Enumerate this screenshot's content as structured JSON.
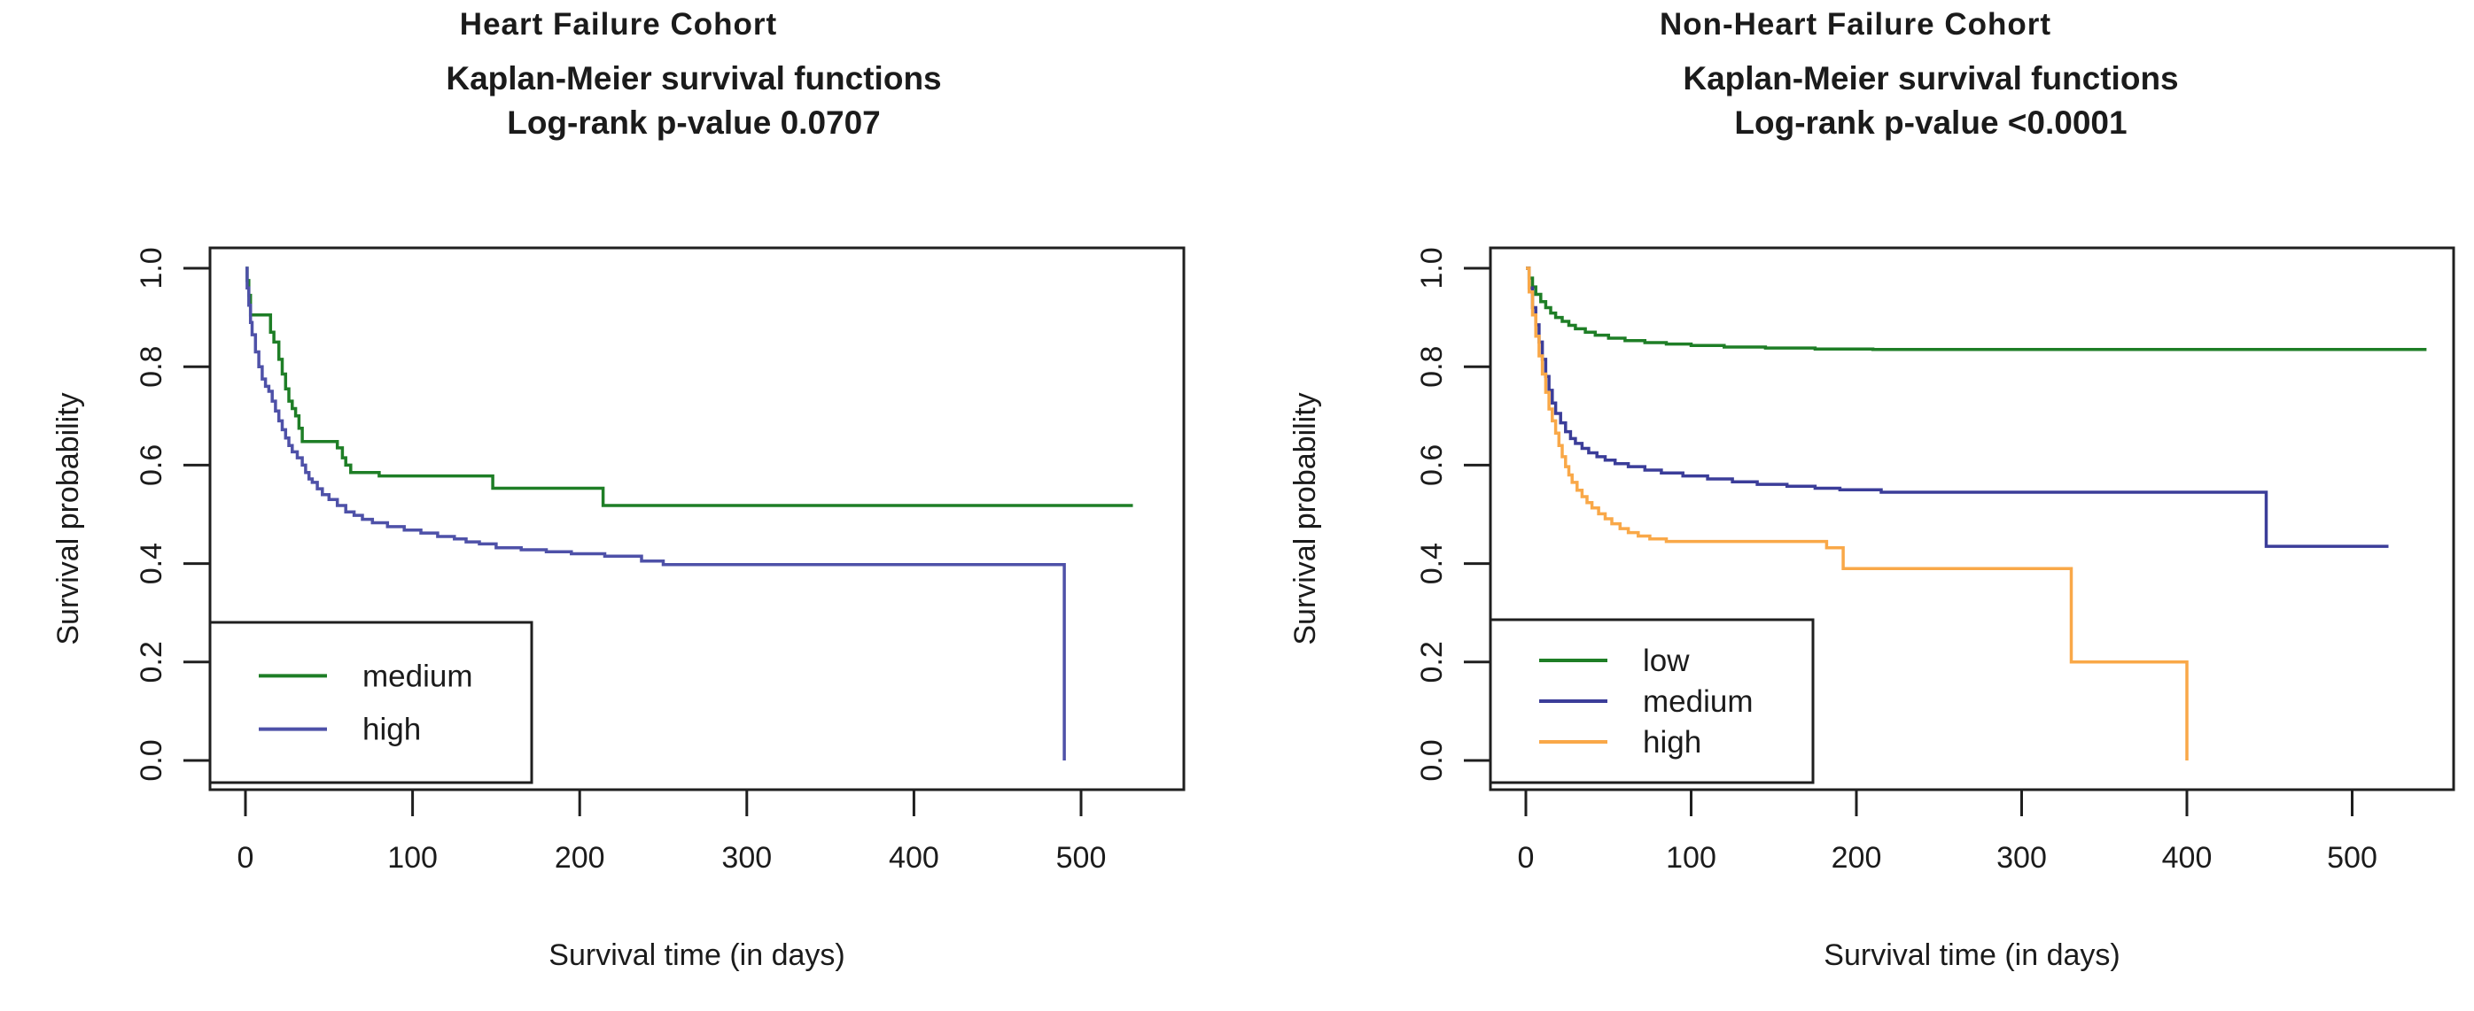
{
  "figure": {
    "background": "#ffffff",
    "axis_color": "#1f1f1f",
    "text_color": "#1b1b1b"
  },
  "chart_data": [
    {
      "type": "line",
      "subtype": "kaplan-meier-step",
      "title": "Heart Failure Cohort",
      "subtitle": "Kaplan-Meier survival functions",
      "pvalue_line": "Log-rank p-value 0.0707",
      "xlabel": "Survival time (in days)",
      "ylabel": "Survival probability",
      "xlim": [
        0,
        540
      ],
      "ylim": [
        0,
        1
      ],
      "xticks": [
        "0",
        "100",
        "200",
        "300",
        "400",
        "500"
      ],
      "xtick_values": [
        0,
        100,
        200,
        300,
        400,
        500
      ],
      "yticks": [
        "0.0",
        "0.2",
        "0.4",
        "0.6",
        "0.8",
        "1.0"
      ],
      "ytick_values": [
        0.0,
        0.2,
        0.4,
        0.6,
        0.8,
        1.0
      ],
      "grid": false,
      "legend_position": "bottom-left",
      "series": [
        {
          "name": "medium",
          "color": "#1E7E26",
          "points": [
            [
              0,
              1.0
            ],
            [
              1,
              0.975
            ],
            [
              2,
              0.945
            ],
            [
              3,
              0.905
            ],
            [
              15,
              0.87
            ],
            [
              17,
              0.85
            ],
            [
              20,
              0.815
            ],
            [
              22,
              0.785
            ],
            [
              24,
              0.755
            ],
            [
              26,
              0.73
            ],
            [
              28,
              0.715
            ],
            [
              30,
              0.7
            ],
            [
              32,
              0.675
            ],
            [
              34,
              0.648
            ],
            [
              55,
              0.635
            ],
            [
              58,
              0.615
            ],
            [
              60,
              0.6
            ],
            [
              63,
              0.585
            ],
            [
              80,
              0.578
            ],
            [
              148,
              0.553
            ],
            [
              214,
              0.518
            ],
            [
              531,
              0.518
            ]
          ]
        },
        {
          "name": "high",
          "color": "#4E51A8",
          "points": [
            [
              0,
              1.0
            ],
            [
              1,
              0.96
            ],
            [
              2,
              0.925
            ],
            [
              3,
              0.89
            ],
            [
              4,
              0.865
            ],
            [
              6,
              0.83
            ],
            [
              8,
              0.8
            ],
            [
              10,
              0.775
            ],
            [
              12,
              0.76
            ],
            [
              14,
              0.75
            ],
            [
              16,
              0.73
            ],
            [
              18,
              0.71
            ],
            [
              20,
              0.69
            ],
            [
              22,
              0.672
            ],
            [
              24,
              0.655
            ],
            [
              26,
              0.64
            ],
            [
              28,
              0.627
            ],
            [
              31,
              0.615
            ],
            [
              34,
              0.6
            ],
            [
              36,
              0.585
            ],
            [
              38,
              0.572
            ],
            [
              40,
              0.565
            ],
            [
              43,
              0.552
            ],
            [
              46,
              0.54
            ],
            [
              50,
              0.53
            ],
            [
              55,
              0.518
            ],
            [
              60,
              0.505
            ],
            [
              65,
              0.498
            ],
            [
              70,
              0.49
            ],
            [
              76,
              0.483
            ],
            [
              85,
              0.475
            ],
            [
              95,
              0.468
            ],
            [
              105,
              0.462
            ],
            [
              115,
              0.455
            ],
            [
              125,
              0.45
            ],
            [
              132,
              0.444
            ],
            [
              140,
              0.44
            ],
            [
              150,
              0.432
            ],
            [
              165,
              0.428
            ],
            [
              180,
              0.424
            ],
            [
              195,
              0.42
            ],
            [
              215,
              0.415
            ],
            [
              237,
              0.405
            ],
            [
              250,
              0.398
            ],
            [
              490,
              0.0
            ]
          ]
        }
      ]
    },
    {
      "type": "line",
      "subtype": "kaplan-meier-step",
      "title": "Non-Heart Failure Cohort",
      "subtitle": "Kaplan-Meier survival functions",
      "pvalue_line": "Log-rank p-value <0.0001",
      "xlabel": "Survival time (in days)",
      "ylabel": "Survival probability",
      "xlim": [
        0,
        540
      ],
      "ylim": [
        0,
        1
      ],
      "xticks": [
        "0",
        "100",
        "200",
        "300",
        "400",
        "500"
      ],
      "xtick_values": [
        0,
        100,
        200,
        300,
        400,
        500
      ],
      "yticks": [
        "0.0",
        "0.2",
        "0.4",
        "0.6",
        "0.8",
        "1.0"
      ],
      "ytick_values": [
        0.0,
        0.2,
        0.4,
        0.6,
        0.8,
        1.0
      ],
      "grid": false,
      "legend_position": "bottom-left",
      "series": [
        {
          "name": "low",
          "color": "#1E7E26",
          "points": [
            [
              0,
              1.0
            ],
            [
              2,
              0.98
            ],
            [
              4,
              0.962
            ],
            [
              6,
              0.947
            ],
            [
              9,
              0.932
            ],
            [
              12,
              0.92
            ],
            [
              15,
              0.909
            ],
            [
              18,
              0.9
            ],
            [
              22,
              0.892
            ],
            [
              26,
              0.884
            ],
            [
              30,
              0.877
            ],
            [
              36,
              0.87
            ],
            [
              42,
              0.864
            ],
            [
              50,
              0.858
            ],
            [
              60,
              0.853
            ],
            [
              72,
              0.849
            ],
            [
              85,
              0.846
            ],
            [
              100,
              0.843
            ],
            [
              120,
              0.84
            ],
            [
              145,
              0.838
            ],
            [
              175,
              0.836
            ],
            [
              210,
              0.835
            ],
            [
              545,
              0.835
            ]
          ]
        },
        {
          "name": "medium",
          "color": "#3B3D99",
          "points": [
            [
              0,
              1.0
            ],
            [
              2,
              0.96
            ],
            [
              4,
              0.92
            ],
            [
              6,
              0.885
            ],
            [
              8,
              0.85
            ],
            [
              10,
              0.815
            ],
            [
              12,
              0.78
            ],
            [
              14,
              0.752
            ],
            [
              16,
              0.726
            ],
            [
              18,
              0.705
            ],
            [
              21,
              0.686
            ],
            [
              24,
              0.668
            ],
            [
              27,
              0.654
            ],
            [
              30,
              0.644
            ],
            [
              34,
              0.634
            ],
            [
              38,
              0.625
            ],
            [
              43,
              0.617
            ],
            [
              48,
              0.61
            ],
            [
              54,
              0.603
            ],
            [
              62,
              0.597
            ],
            [
              72,
              0.59
            ],
            [
              82,
              0.584
            ],
            [
              95,
              0.578
            ],
            [
              110,
              0.572
            ],
            [
              125,
              0.566
            ],
            [
              140,
              0.561
            ],
            [
              158,
              0.557
            ],
            [
              175,
              0.553
            ],
            [
              190,
              0.55
            ],
            [
              215,
              0.545
            ],
            [
              448,
              0.435
            ],
            [
              522,
              0.435
            ]
          ]
        },
        {
          "name": "high",
          "color": "#F9A848",
          "points": [
            [
              0,
              1.0
            ],
            [
              2,
              0.952
            ],
            [
              4,
              0.905
            ],
            [
              6,
              0.862
            ],
            [
              8,
              0.822
            ],
            [
              10,
              0.785
            ],
            [
              12,
              0.748
            ],
            [
              14,
              0.714
            ],
            [
              16,
              0.69
            ],
            [
              18,
              0.665
            ],
            [
              20,
              0.64
            ],
            [
              22,
              0.617
            ],
            [
              24,
              0.597
            ],
            [
              26,
              0.58
            ],
            [
              28,
              0.565
            ],
            [
              31,
              0.549
            ],
            [
              34,
              0.536
            ],
            [
              37,
              0.524
            ],
            [
              40,
              0.513
            ],
            [
              44,
              0.501
            ],
            [
              48,
              0.491
            ],
            [
              52,
              0.481
            ],
            [
              57,
              0.471
            ],
            [
              62,
              0.463
            ],
            [
              68,
              0.456
            ],
            [
              75,
              0.45
            ],
            [
              85,
              0.445
            ],
            [
              182,
              0.432
            ],
            [
              192,
              0.39
            ],
            [
              330,
              0.2
            ],
            [
              400,
              0.0
            ]
          ]
        }
      ]
    }
  ]
}
